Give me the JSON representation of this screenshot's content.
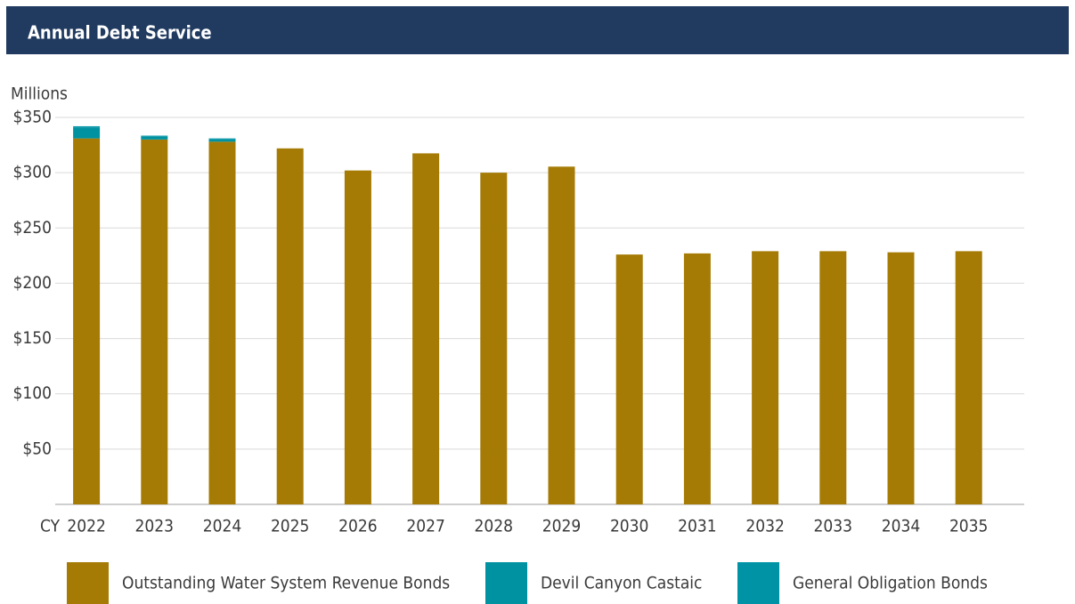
{
  "chart_data": {
    "type": "bar",
    "stacked": true,
    "title": "Annual Debt Service",
    "y_axis_label": "Millions",
    "x_axis_label": "CY",
    "categories": [
      "2022",
      "2023",
      "2024",
      "2025",
      "2026",
      "2027",
      "2028",
      "2029",
      "2030",
      "2031",
      "2032",
      "2033",
      "2034",
      "2035"
    ],
    "series": [
      {
        "name": "Outstanding Water System Revenue Bonds",
        "color": "#a67b05",
        "values": [
          331,
          330,
          328,
          322,
          302,
          317.5,
          300,
          305.5,
          226,
          227,
          229,
          229,
          228,
          229
        ]
      },
      {
        "name": "Devil Canyon Castaic",
        "color": "#0092a1",
        "values": [
          10,
          3,
          2,
          0,
          0,
          0,
          0,
          0,
          0,
          0,
          0,
          0,
          0,
          0
        ]
      },
      {
        "name": "General Obligation Bonds",
        "color": "#0093a6",
        "values": [
          1,
          0.5,
          1,
          0,
          0,
          0,
          0,
          0,
          0,
          0,
          0,
          0,
          0,
          0
        ]
      }
    ],
    "ylim": [
      0,
      350
    ],
    "yticks": [
      {
        "value": 50,
        "label": "$50"
      },
      {
        "value": 100,
        "label": "$100"
      },
      {
        "value": 150,
        "label": "$150"
      },
      {
        "value": 200,
        "label": "$200"
      },
      {
        "value": 250,
        "label": "$250"
      },
      {
        "value": 300,
        "label": "$300"
      },
      {
        "value": 350,
        "label": "$350"
      }
    ],
    "grid": true,
    "legend": "bottom"
  }
}
